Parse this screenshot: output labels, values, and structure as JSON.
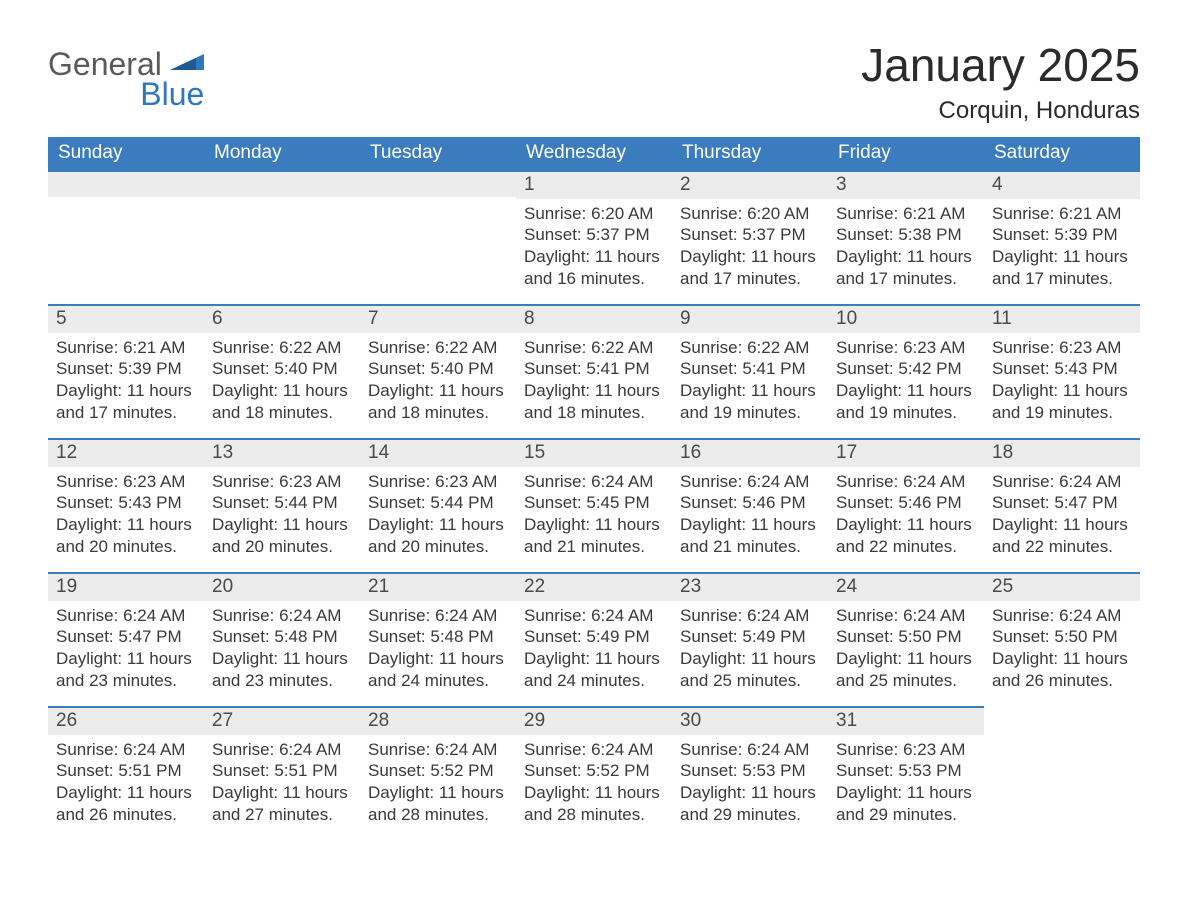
{
  "colors": {
    "header_bg": "#3b7cbf",
    "header_text": "#ffffff",
    "daynum_bg": "#ececec",
    "daynum_border": "#3b7cbf",
    "body_text": "#3a3a3a",
    "logo_grey": "#5a5a5a",
    "logo_blue": "#2f78bf",
    "page_bg": "#ffffff"
  },
  "logo": {
    "line1": "General",
    "line2": "Blue"
  },
  "title": "January 2025",
  "location": "Corquin, Honduras",
  "weekdays": [
    "Sunday",
    "Monday",
    "Tuesday",
    "Wednesday",
    "Thursday",
    "Friday",
    "Saturday"
  ],
  "leading_blanks": 3,
  "days": [
    {
      "n": 1,
      "sunrise": "6:20 AM",
      "sunset": "5:37 PM",
      "daylight": "11 hours and 16 minutes."
    },
    {
      "n": 2,
      "sunrise": "6:20 AM",
      "sunset": "5:37 PM",
      "daylight": "11 hours and 17 minutes."
    },
    {
      "n": 3,
      "sunrise": "6:21 AM",
      "sunset": "5:38 PM",
      "daylight": "11 hours and 17 minutes."
    },
    {
      "n": 4,
      "sunrise": "6:21 AM",
      "sunset": "5:39 PM",
      "daylight": "11 hours and 17 minutes."
    },
    {
      "n": 5,
      "sunrise": "6:21 AM",
      "sunset": "5:39 PM",
      "daylight": "11 hours and 17 minutes."
    },
    {
      "n": 6,
      "sunrise": "6:22 AM",
      "sunset": "5:40 PM",
      "daylight": "11 hours and 18 minutes."
    },
    {
      "n": 7,
      "sunrise": "6:22 AM",
      "sunset": "5:40 PM",
      "daylight": "11 hours and 18 minutes."
    },
    {
      "n": 8,
      "sunrise": "6:22 AM",
      "sunset": "5:41 PM",
      "daylight": "11 hours and 18 minutes."
    },
    {
      "n": 9,
      "sunrise": "6:22 AM",
      "sunset": "5:41 PM",
      "daylight": "11 hours and 19 minutes."
    },
    {
      "n": 10,
      "sunrise": "6:23 AM",
      "sunset": "5:42 PM",
      "daylight": "11 hours and 19 minutes."
    },
    {
      "n": 11,
      "sunrise": "6:23 AM",
      "sunset": "5:43 PM",
      "daylight": "11 hours and 19 minutes."
    },
    {
      "n": 12,
      "sunrise": "6:23 AM",
      "sunset": "5:43 PM",
      "daylight": "11 hours and 20 minutes."
    },
    {
      "n": 13,
      "sunrise": "6:23 AM",
      "sunset": "5:44 PM",
      "daylight": "11 hours and 20 minutes."
    },
    {
      "n": 14,
      "sunrise": "6:23 AM",
      "sunset": "5:44 PM",
      "daylight": "11 hours and 20 minutes."
    },
    {
      "n": 15,
      "sunrise": "6:24 AM",
      "sunset": "5:45 PM",
      "daylight": "11 hours and 21 minutes."
    },
    {
      "n": 16,
      "sunrise": "6:24 AM",
      "sunset": "5:46 PM",
      "daylight": "11 hours and 21 minutes."
    },
    {
      "n": 17,
      "sunrise": "6:24 AM",
      "sunset": "5:46 PM",
      "daylight": "11 hours and 22 minutes."
    },
    {
      "n": 18,
      "sunrise": "6:24 AM",
      "sunset": "5:47 PM",
      "daylight": "11 hours and 22 minutes."
    },
    {
      "n": 19,
      "sunrise": "6:24 AM",
      "sunset": "5:47 PM",
      "daylight": "11 hours and 23 minutes."
    },
    {
      "n": 20,
      "sunrise": "6:24 AM",
      "sunset": "5:48 PM",
      "daylight": "11 hours and 23 minutes."
    },
    {
      "n": 21,
      "sunrise": "6:24 AM",
      "sunset": "5:48 PM",
      "daylight": "11 hours and 24 minutes."
    },
    {
      "n": 22,
      "sunrise": "6:24 AM",
      "sunset": "5:49 PM",
      "daylight": "11 hours and 24 minutes."
    },
    {
      "n": 23,
      "sunrise": "6:24 AM",
      "sunset": "5:49 PM",
      "daylight": "11 hours and 25 minutes."
    },
    {
      "n": 24,
      "sunrise": "6:24 AM",
      "sunset": "5:50 PM",
      "daylight": "11 hours and 25 minutes."
    },
    {
      "n": 25,
      "sunrise": "6:24 AM",
      "sunset": "5:50 PM",
      "daylight": "11 hours and 26 minutes."
    },
    {
      "n": 26,
      "sunrise": "6:24 AM",
      "sunset": "5:51 PM",
      "daylight": "11 hours and 26 minutes."
    },
    {
      "n": 27,
      "sunrise": "6:24 AM",
      "sunset": "5:51 PM",
      "daylight": "11 hours and 27 minutes."
    },
    {
      "n": 28,
      "sunrise": "6:24 AM",
      "sunset": "5:52 PM",
      "daylight": "11 hours and 28 minutes."
    },
    {
      "n": 29,
      "sunrise": "6:24 AM",
      "sunset": "5:52 PM",
      "daylight": "11 hours and 28 minutes."
    },
    {
      "n": 30,
      "sunrise": "6:24 AM",
      "sunset": "5:53 PM",
      "daylight": "11 hours and 29 minutes."
    },
    {
      "n": 31,
      "sunrise": "6:23 AM",
      "sunset": "5:53 PM",
      "daylight": "11 hours and 29 minutes."
    }
  ],
  "labels": {
    "sunrise": "Sunrise: ",
    "sunset": "Sunset: ",
    "daylight": "Daylight: "
  }
}
